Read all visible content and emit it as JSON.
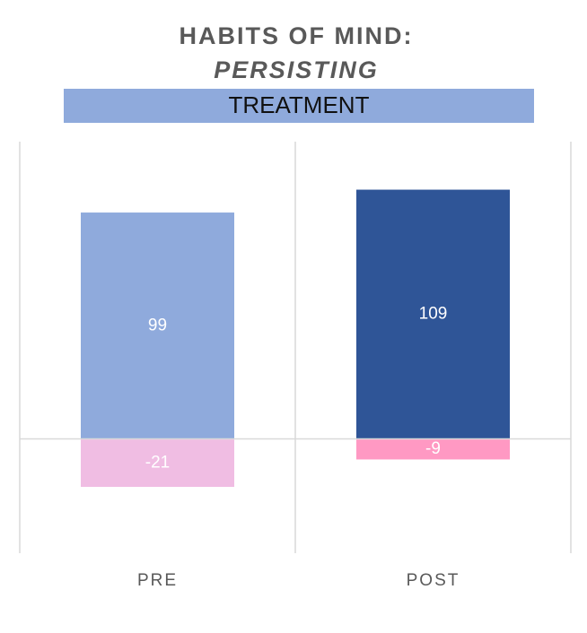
{
  "chart_data": {
    "type": "bar",
    "title": "HABITS OF MIND:",
    "title_italic": "PERSISTING",
    "subtitle": "TREATMENT",
    "categories": [
      "PRE",
      "POST"
    ],
    "series": [
      {
        "colors": [
          "#8faadc",
          "#2f5597"
        ],
        "values": [
          99,
          109
        ]
      },
      {
        "colors": [
          "#f0bde3",
          "#ff99c3"
        ],
        "values": [
          -21,
          -9
        ]
      }
    ],
    "ylim": [
      -50,
      130
    ]
  }
}
